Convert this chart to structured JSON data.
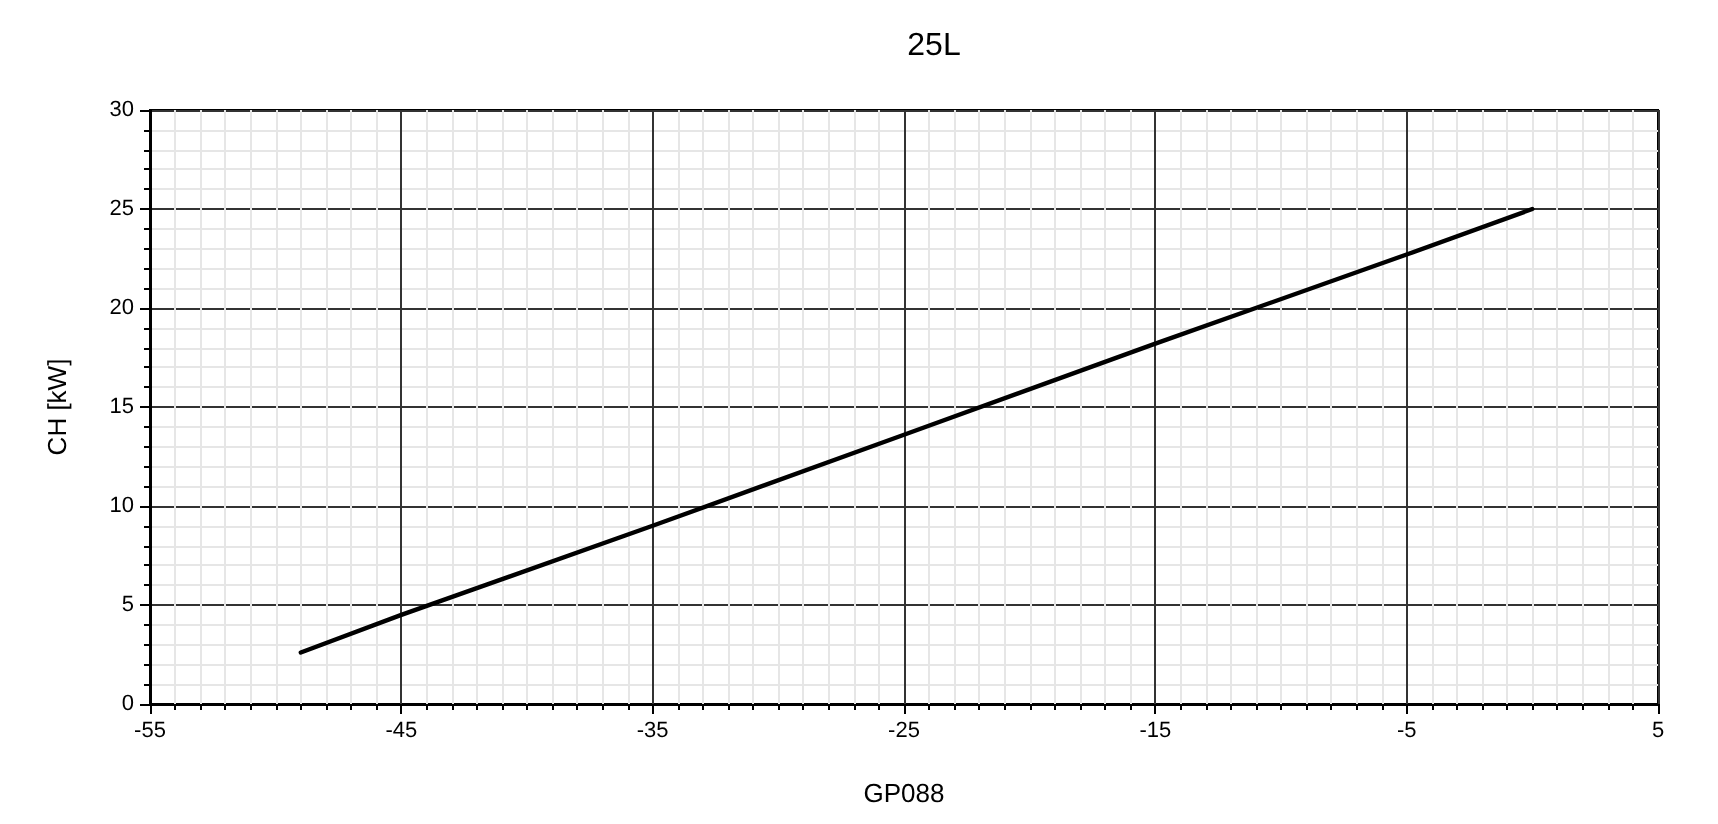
{
  "chart_data": {
    "type": "line",
    "title": "25L",
    "xlabel": "GP088",
    "ylabel": "CH [kW]",
    "x": [
      -49,
      -45,
      -35,
      -25,
      -15,
      -5,
      0
    ],
    "series": [
      {
        "color": "#000000",
        "values": [
          2.6,
          4.5,
          9.0,
          13.6,
          18.2,
          22.7,
          25.0
        ]
      }
    ],
    "xlim": [
      -55,
      5
    ],
    "xticks": [
      -55,
      -45,
      -35,
      -25,
      -15,
      -5,
      5
    ],
    "ylim": [
      0,
      30
    ],
    "yticks": [
      0,
      5,
      10,
      15,
      20,
      25,
      30
    ],
    "grid": true,
    "marker": "none",
    "line_style": "solid"
  }
}
